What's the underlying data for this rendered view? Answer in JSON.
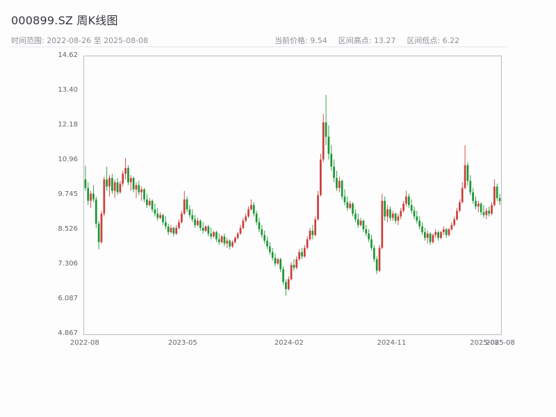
{
  "header": {
    "title": "000899.SZ 周K线图",
    "time_range_label": "时间范围:",
    "time_range_value": "2022-08-26 至 2025-08-08",
    "stats": [
      {
        "label": "当前价格:",
        "value": "9.54"
      },
      {
        "label": "区间高点:",
        "value": "13.27"
      },
      {
        "label": "区间低点:",
        "value": "6.22"
      }
    ]
  },
  "chart_data": {
    "type": "candlestick",
    "title": "000899.SZ 周K线图",
    "symbol": "000899.SZ",
    "interval": "weekly",
    "grid": false,
    "up_color": "#cb3d37",
    "down_color": "#1a9632",
    "ylim": [
      4.867,
      14.62
    ],
    "y_ticks": [
      "14.62",
      "13.40",
      "12.18",
      "10.96",
      "9.745",
      "8.526",
      "7.306",
      "6.087",
      "4.867"
    ],
    "x_ticks": [
      {
        "label": "2022-08",
        "pos": 0.003
      },
      {
        "label": "2023-05",
        "pos": 0.238
      },
      {
        "label": "2024-02",
        "pos": 0.493
      },
      {
        "label": "2024-11",
        "pos": 0.739
      },
      {
        "label": "2025-08",
        "pos": 0.962
      },
      {
        "label": "2025-08",
        "pos": 1.0
      }
    ],
    "columns": [
      "open",
      "high",
      "low",
      "close"
    ],
    "candles": [
      [
        10.3,
        10.78,
        9.9,
        10.0
      ],
      [
        10.0,
        10.2,
        9.4,
        9.55
      ],
      [
        9.55,
        9.9,
        9.3,
        9.8
      ],
      [
        9.8,
        10.1,
        9.5,
        9.6
      ],
      [
        9.6,
        9.7,
        8.6,
        8.75
      ],
      [
        8.75,
        8.85,
        7.85,
        8.1
      ],
      [
        8.1,
        9.2,
        8.05,
        9.1
      ],
      [
        9.1,
        10.4,
        9.0,
        10.3
      ],
      [
        10.3,
        10.75,
        9.9,
        10.05
      ],
      [
        10.05,
        10.45,
        9.7,
        10.35
      ],
      [
        10.35,
        10.5,
        9.8,
        9.9
      ],
      [
        9.9,
        10.3,
        9.65,
        10.2
      ],
      [
        10.2,
        10.35,
        9.75,
        9.85
      ],
      [
        9.85,
        10.25,
        9.8,
        10.15
      ],
      [
        10.15,
        10.6,
        10.05,
        10.5
      ],
      [
        10.5,
        11.05,
        10.3,
        10.7
      ],
      [
        10.7,
        10.8,
        10.1,
        10.2
      ],
      [
        10.2,
        10.45,
        9.9,
        10.35
      ],
      [
        10.35,
        10.4,
        9.85,
        9.95
      ],
      [
        9.95,
        10.2,
        9.65,
        10.1
      ],
      [
        10.1,
        10.25,
        9.75,
        9.85
      ],
      [
        9.85,
        10.05,
        9.55,
        9.95
      ],
      [
        9.95,
        10.0,
        9.5,
        9.6
      ],
      [
        9.6,
        9.8,
        9.3,
        9.4
      ],
      [
        9.4,
        9.65,
        9.35,
        9.55
      ],
      [
        9.55,
        9.6,
        9.15,
        9.25
      ],
      [
        9.25,
        9.45,
        9.0,
        9.1
      ],
      [
        9.1,
        9.3,
        8.85,
        8.95
      ],
      [
        8.95,
        9.15,
        8.9,
        9.05
      ],
      [
        9.05,
        9.1,
        8.7,
        8.8
      ],
      [
        8.8,
        9.0,
        8.55,
        8.65
      ],
      [
        8.65,
        8.75,
        8.35,
        8.45
      ],
      [
        8.45,
        8.7,
        8.4,
        8.6
      ],
      [
        8.6,
        8.65,
        8.3,
        8.4
      ],
      [
        8.4,
        8.7,
        8.35,
        8.6
      ],
      [
        8.6,
        8.9,
        8.55,
        8.8
      ],
      [
        8.8,
        9.2,
        8.75,
        9.1
      ],
      [
        9.1,
        9.9,
        9.05,
        9.6
      ],
      [
        9.6,
        9.7,
        9.15,
        9.25
      ],
      [
        9.25,
        9.4,
        8.95,
        9.05
      ],
      [
        9.05,
        9.25,
        8.8,
        8.9
      ],
      [
        8.9,
        9.05,
        8.6,
        8.7
      ],
      [
        8.7,
        8.95,
        8.65,
        8.85
      ],
      [
        8.85,
        8.9,
        8.5,
        8.6
      ],
      [
        8.6,
        8.8,
        8.4,
        8.5
      ],
      [
        8.5,
        8.7,
        8.45,
        8.65
      ],
      [
        8.65,
        8.7,
        8.3,
        8.4
      ],
      [
        8.4,
        8.6,
        8.2,
        8.3
      ],
      [
        8.3,
        8.5,
        8.25,
        8.45
      ],
      [
        8.45,
        8.5,
        8.1,
        8.2
      ],
      [
        8.2,
        8.4,
        8.0,
        8.1
      ],
      [
        8.1,
        8.35,
        8.05,
        8.3
      ],
      [
        8.3,
        8.4,
        7.95,
        8.05
      ],
      [
        8.05,
        8.25,
        7.9,
        8.15
      ],
      [
        8.15,
        8.2,
        7.85,
        7.95
      ],
      [
        7.95,
        8.15,
        7.9,
        8.1
      ],
      [
        8.1,
        8.3,
        8.05,
        8.25
      ],
      [
        8.25,
        8.45,
        8.2,
        8.4
      ],
      [
        8.4,
        8.7,
        8.35,
        8.6
      ],
      [
        8.6,
        8.95,
        8.55,
        8.85
      ],
      [
        8.85,
        9.1,
        8.8,
        9.0
      ],
      [
        9.0,
        9.35,
        8.95,
        9.25
      ],
      [
        9.25,
        9.6,
        9.2,
        9.4
      ],
      [
        9.4,
        9.5,
        9.0,
        9.1
      ],
      [
        9.1,
        9.2,
        8.7,
        8.8
      ],
      [
        8.8,
        8.95,
        8.45,
        8.55
      ],
      [
        8.55,
        8.7,
        8.25,
        8.35
      ],
      [
        8.35,
        8.5,
        8.05,
        8.15
      ],
      [
        8.15,
        8.3,
        7.85,
        7.95
      ],
      [
        7.95,
        8.1,
        7.65,
        7.75
      ],
      [
        7.75,
        7.9,
        7.45,
        7.55
      ],
      [
        7.55,
        7.7,
        7.25,
        7.35
      ],
      [
        7.35,
        7.55,
        7.3,
        7.5
      ],
      [
        7.5,
        7.55,
        7.05,
        7.15
      ],
      [
        7.15,
        7.25,
        6.6,
        6.7
      ],
      [
        6.7,
        6.8,
        6.22,
        6.45
      ],
      [
        6.45,
        6.9,
        6.4,
        6.8
      ],
      [
        6.8,
        7.4,
        6.75,
        7.3
      ],
      [
        7.3,
        7.5,
        7.1,
        7.2
      ],
      [
        7.2,
        7.6,
        7.15,
        7.5
      ],
      [
        7.5,
        7.85,
        7.45,
        7.75
      ],
      [
        7.75,
        7.9,
        7.5,
        7.6
      ],
      [
        7.6,
        8.0,
        7.55,
        7.9
      ],
      [
        7.9,
        8.3,
        7.85,
        8.2
      ],
      [
        8.2,
        8.6,
        8.15,
        8.5
      ],
      [
        8.5,
        8.7,
        8.2,
        8.35
      ],
      [
        8.35,
        9.0,
        8.3,
        8.9
      ],
      [
        8.9,
        9.9,
        8.85,
        9.75
      ],
      [
        9.75,
        11.2,
        9.7,
        11.0
      ],
      [
        11.0,
        12.6,
        10.9,
        12.3
      ],
      [
        12.3,
        13.27,
        11.5,
        11.8
      ],
      [
        11.8,
        12.2,
        11.0,
        11.2
      ],
      [
        11.2,
        11.5,
        10.6,
        10.75
      ],
      [
        10.75,
        11.0,
        10.2,
        10.35
      ],
      [
        10.35,
        10.6,
        9.9,
        10.0
      ],
      [
        10.0,
        10.4,
        9.85,
        10.25
      ],
      [
        10.25,
        10.3,
        9.6,
        9.7
      ],
      [
        9.7,
        9.95,
        9.4,
        9.5
      ],
      [
        9.5,
        9.7,
        9.2,
        9.3
      ],
      [
        9.3,
        9.55,
        9.25,
        9.45
      ],
      [
        9.45,
        9.5,
        9.0,
        9.1
      ],
      [
        9.1,
        9.25,
        8.8,
        8.9
      ],
      [
        8.9,
        9.1,
        8.6,
        8.7
      ],
      [
        8.7,
        8.95,
        8.65,
        8.85
      ],
      [
        8.85,
        8.9,
        8.45,
        8.55
      ],
      [
        8.55,
        8.7,
        8.3,
        8.4
      ],
      [
        8.4,
        8.55,
        8.1,
        8.2
      ],
      [
        8.2,
        8.35,
        7.8,
        7.9
      ],
      [
        7.9,
        8.0,
        7.4,
        7.5
      ],
      [
        7.5,
        7.6,
        6.98,
        7.1
      ],
      [
        7.1,
        8.0,
        7.05,
        7.9
      ],
      [
        7.9,
        9.8,
        7.85,
        9.55
      ],
      [
        9.55,
        9.7,
        8.85,
        9.0
      ],
      [
        9.0,
        9.4,
        8.8,
        9.25
      ],
      [
        9.25,
        9.35,
        8.85,
        8.95
      ],
      [
        8.95,
        9.2,
        8.85,
        9.1
      ],
      [
        9.1,
        9.15,
        8.75,
        8.85
      ],
      [
        8.85,
        9.1,
        8.7,
        9.0
      ],
      [
        9.0,
        9.3,
        8.9,
        9.2
      ],
      [
        9.2,
        9.55,
        9.15,
        9.45
      ],
      [
        9.45,
        9.9,
        9.35,
        9.7
      ],
      [
        9.7,
        9.8,
        9.3,
        9.4
      ],
      [
        9.4,
        9.6,
        9.1,
        9.2
      ],
      [
        9.2,
        9.35,
        8.9,
        9.0
      ],
      [
        9.0,
        9.2,
        8.75,
        8.85
      ],
      [
        8.85,
        9.0,
        8.55,
        8.65
      ],
      [
        8.65,
        8.8,
        8.35,
        8.45
      ],
      [
        8.45,
        8.6,
        8.15,
        8.25
      ],
      [
        8.25,
        8.5,
        8.05,
        8.4
      ],
      [
        8.4,
        8.45,
        8.0,
        8.1
      ],
      [
        8.1,
        8.4,
        8.05,
        8.35
      ],
      [
        8.35,
        8.55,
        8.25,
        8.45
      ],
      [
        8.45,
        8.5,
        8.15,
        8.25
      ],
      [
        8.25,
        8.5,
        8.2,
        8.45
      ],
      [
        8.45,
        8.65,
        8.35,
        8.55
      ],
      [
        8.55,
        8.6,
        8.25,
        8.35
      ],
      [
        8.35,
        8.6,
        8.3,
        8.55
      ],
      [
        8.55,
        8.8,
        8.5,
        8.7
      ],
      [
        8.7,
        9.0,
        8.65,
        8.9
      ],
      [
        8.9,
        9.3,
        8.85,
        9.2
      ],
      [
        9.2,
        9.6,
        9.15,
        9.5
      ],
      [
        9.5,
        10.2,
        9.45,
        10.0
      ],
      [
        10.0,
        11.5,
        9.95,
        10.8
      ],
      [
        10.8,
        10.9,
        10.1,
        10.25
      ],
      [
        10.25,
        10.45,
        9.75,
        9.85
      ],
      [
        9.85,
        10.0,
        9.45,
        9.55
      ],
      [
        9.55,
        9.7,
        9.25,
        9.35
      ],
      [
        9.35,
        9.55,
        9.15,
        9.45
      ],
      [
        9.45,
        9.5,
        9.05,
        9.15
      ],
      [
        9.15,
        9.4,
        8.95,
        9.05
      ],
      [
        9.05,
        9.3,
        8.9,
        9.2
      ],
      [
        9.2,
        9.35,
        9.0,
        9.1
      ],
      [
        9.1,
        9.5,
        9.05,
        9.4
      ],
      [
        9.4,
        10.3,
        9.35,
        10.05
      ],
      [
        10.05,
        10.15,
        9.55,
        9.65
      ],
      [
        9.65,
        9.8,
        9.4,
        9.54
      ]
    ]
  }
}
